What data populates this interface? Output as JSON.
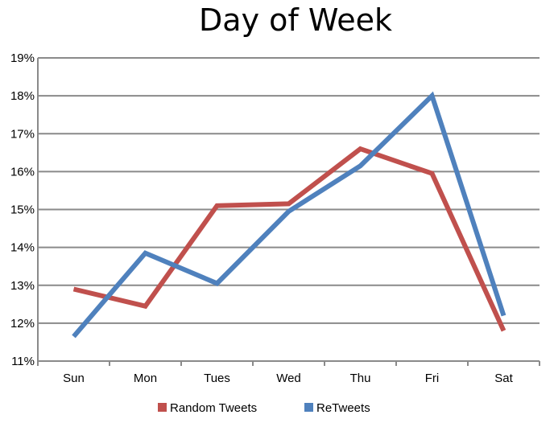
{
  "chart_data": {
    "type": "line",
    "title": "Day of Week",
    "xlabel": "",
    "ylabel": "",
    "categories": [
      "Sun",
      "Mon",
      "Tues",
      "Wed",
      "Thu",
      "Fri",
      "Sat"
    ],
    "ylim": [
      11,
      19
    ],
    "yticks": [
      "11%",
      "12%",
      "13%",
      "14%",
      "15%",
      "16%",
      "17%",
      "18%",
      "19%"
    ],
    "grid": true,
    "legend_position": "bottom",
    "series": [
      {
        "name": "Random Tweets",
        "color": "#c0504d",
        "values": [
          12.9,
          12.45,
          15.1,
          15.15,
          16.6,
          15.95,
          11.8
        ]
      },
      {
        "name": "ReTweets",
        "color": "#4f81bd",
        "values": [
          11.65,
          13.85,
          13.05,
          14.95,
          16.15,
          18.0,
          12.2
        ]
      }
    ]
  }
}
